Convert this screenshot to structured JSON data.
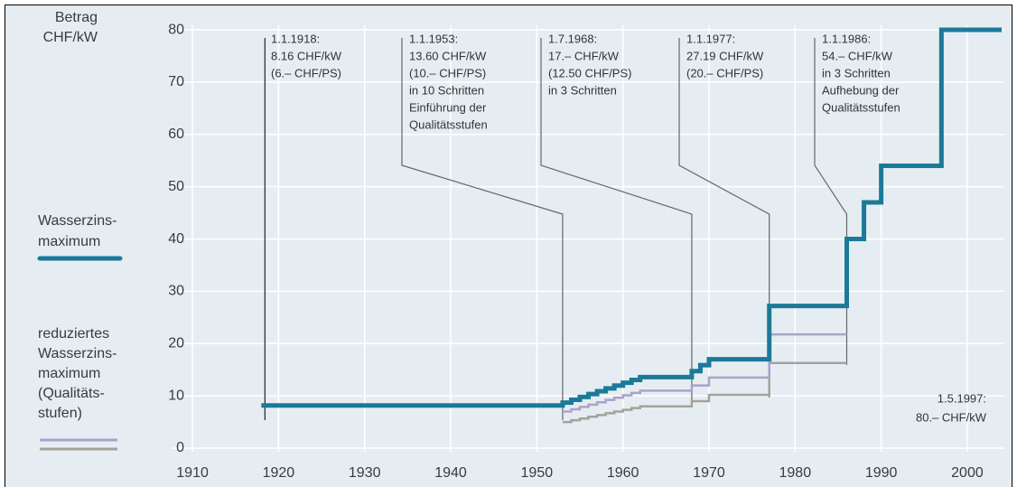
{
  "chart_data": {
    "type": "line",
    "step": "post",
    "ylabel": [
      "Betrag",
      "CHF/kW"
    ],
    "xlim": [
      1908,
      2005
    ],
    "ylim": [
      -2,
      84
    ],
    "xticks": [
      1910,
      1920,
      1930,
      1940,
      1950,
      1960,
      1970,
      1980,
      1990,
      2000
    ],
    "yticks": [
      0,
      10,
      20,
      30,
      40,
      50,
      60,
      70,
      80
    ],
    "grid": true,
    "series": [
      {
        "name": [
          "Wasserzins-",
          "maximum"
        ],
        "color": "#1b7a98",
        "x": [
          1918,
          1953,
          1954,
          1955,
          1956,
          1957,
          1958,
          1959,
          1960,
          1961,
          1962,
          1968,
          1969,
          1970,
          1977,
          1986,
          1988,
          1990,
          1997,
          2004
        ],
        "values": [
          8.16,
          8.7,
          9.25,
          9.79,
          10.34,
          10.88,
          11.42,
          11.97,
          12.51,
          13.06,
          13.6,
          14.73,
          15.87,
          17,
          27.19,
          40,
          47,
          54,
          80,
          80
        ]
      },
      {
        "name": [
          "reduziertes",
          "Wasserzins-",
          "maximum",
          "(Qualitäts-",
          "stufen)"
        ],
        "color": "#aaa3c9",
        "x": [
          1953,
          1954,
          1955,
          1956,
          1957,
          1958,
          1959,
          1960,
          1961,
          1962,
          1968,
          1970,
          1977,
          1986
        ],
        "values": [
          7,
          7.44,
          7.89,
          8.33,
          8.78,
          9.22,
          9.67,
          10.11,
          10.56,
          11,
          12,
          13.5,
          21.75,
          21.75
        ]
      },
      {
        "color": "#a3a39b",
        "x": [
          1953,
          1954,
          1955,
          1956,
          1957,
          1958,
          1959,
          1960,
          1961,
          1962,
          1968,
          1970,
          1977,
          1986
        ],
        "values": [
          5,
          5.33,
          5.67,
          6,
          6.33,
          6.67,
          7,
          7.33,
          7.67,
          8,
          9,
          10.2,
          16.3,
          16.3
        ]
      }
    ],
    "annotations": [
      {
        "x": 1918,
        "lines": [
          "1.1.1918:",
          "8.16 CHF/kW",
          "(6.– CHF/PS)"
        ]
      },
      {
        "x": 1953,
        "lines": [
          "1.1.1953:",
          "13.60 CHF/kW",
          "(10.– CHF/PS)",
          "in 10 Schritten",
          "Einführung der",
          "Qualitätsstufen"
        ]
      },
      {
        "x": 1968,
        "lines": [
          "1.7.1968:",
          "17.– CHF/kW",
          "(12.50 CHF/PS)",
          "in 3 Schritten"
        ]
      },
      {
        "x": 1977,
        "lines": [
          "1.1.1977:",
          "27.19 CHF/kW",
          "(20.– CHF/PS)"
        ]
      },
      {
        "x": 1986,
        "lines": [
          "1.1.1986:",
          "54.– CHF/kW",
          "in 3 Schritten",
          "Aufhebung der",
          "Qualitätsstufen"
        ]
      },
      {
        "x": 1997,
        "lines": [
          "1.5.1997:",
          "80.– CHF/kW"
        ]
      }
    ]
  }
}
